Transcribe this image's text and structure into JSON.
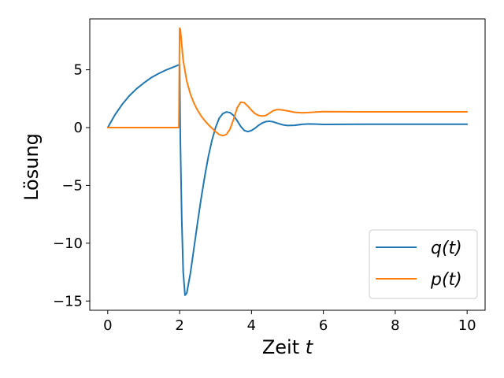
{
  "chart_data": {
    "type": "line",
    "title": "",
    "xlabel": "Zeit",
    "xlabel_var": "t",
    "ylabel": "Lösung",
    "xlim": [
      -0.5,
      10.5
    ],
    "ylim": [
      -15.8,
      9.4
    ],
    "xticks": [
      0,
      2,
      4,
      6,
      8,
      10
    ],
    "yticks": [
      -15,
      -10,
      -5,
      0,
      5
    ],
    "ytick_labels": [
      "−15",
      "−10",
      "−5",
      "0",
      "5"
    ],
    "grid": false,
    "legend_position": "lower-right",
    "series": [
      {
        "name": "q(t)",
        "color": "#1f77b4",
        "x": [
          0,
          0.2,
          0.4,
          0.6,
          0.8,
          1.0,
          1.2,
          1.4,
          1.6,
          1.8,
          2.0,
          2.02,
          2.06,
          2.1,
          2.15,
          2.2,
          2.3,
          2.4,
          2.5,
          2.6,
          2.7,
          2.8,
          2.9,
          3.0,
          3.1,
          3.2,
          3.3,
          3.4,
          3.5,
          3.6,
          3.7,
          3.8,
          3.9,
          4.0,
          4.1,
          4.2,
          4.3,
          4.4,
          4.5,
          4.6,
          4.7,
          4.8,
          4.9,
          5.0,
          5.2,
          5.4,
          5.6,
          5.8,
          6.0,
          6.5,
          7.0,
          7.5,
          8.0,
          9.0,
          10.0
        ],
        "y": [
          0,
          1.1,
          2.0,
          2.75,
          3.35,
          3.85,
          4.3,
          4.65,
          4.95,
          5.2,
          5.45,
          -1.0,
          -8.0,
          -12.5,
          -14.5,
          -14.3,
          -12.6,
          -10.4,
          -8.2,
          -6.1,
          -4.2,
          -2.5,
          -1.1,
          0.0,
          0.8,
          1.2,
          1.35,
          1.3,
          1.05,
          0.6,
          0.1,
          -0.25,
          -0.35,
          -0.25,
          -0.05,
          0.2,
          0.4,
          0.52,
          0.55,
          0.5,
          0.4,
          0.3,
          0.22,
          0.18,
          0.2,
          0.28,
          0.32,
          0.3,
          0.27,
          0.28,
          0.29,
          0.29,
          0.29,
          0.29,
          0.29
        ]
      },
      {
        "name": "p(t)",
        "color": "#ff7f0e",
        "x": [
          0,
          0.5,
          1.0,
          1.5,
          1.98,
          2.0,
          2.02,
          2.1,
          2.2,
          2.3,
          2.4,
          2.5,
          2.6,
          2.7,
          2.8,
          2.9,
          3.0,
          3.1,
          3.2,
          3.3,
          3.4,
          3.5,
          3.6,
          3.7,
          3.8,
          3.9,
          4.0,
          4.1,
          4.2,
          4.3,
          4.4,
          4.5,
          4.6,
          4.7,
          4.8,
          4.9,
          5.0,
          5.2,
          5.4,
          5.6,
          5.8,
          6.0,
          6.5,
          7.0,
          7.5,
          8.0,
          9.0,
          10.0
        ],
        "y": [
          0,
          0,
          0,
          0,
          0,
          8.6,
          8.5,
          5.8,
          4.0,
          2.9,
          2.1,
          1.5,
          1.0,
          0.6,
          0.25,
          -0.05,
          -0.35,
          -0.6,
          -0.7,
          -0.6,
          -0.15,
          0.7,
          1.7,
          2.2,
          2.15,
          1.85,
          1.5,
          1.2,
          1.05,
          1.0,
          1.05,
          1.25,
          1.45,
          1.55,
          1.55,
          1.5,
          1.45,
          1.32,
          1.28,
          1.3,
          1.35,
          1.38,
          1.37,
          1.36,
          1.36,
          1.36,
          1.36,
          1.36
        ]
      }
    ]
  }
}
